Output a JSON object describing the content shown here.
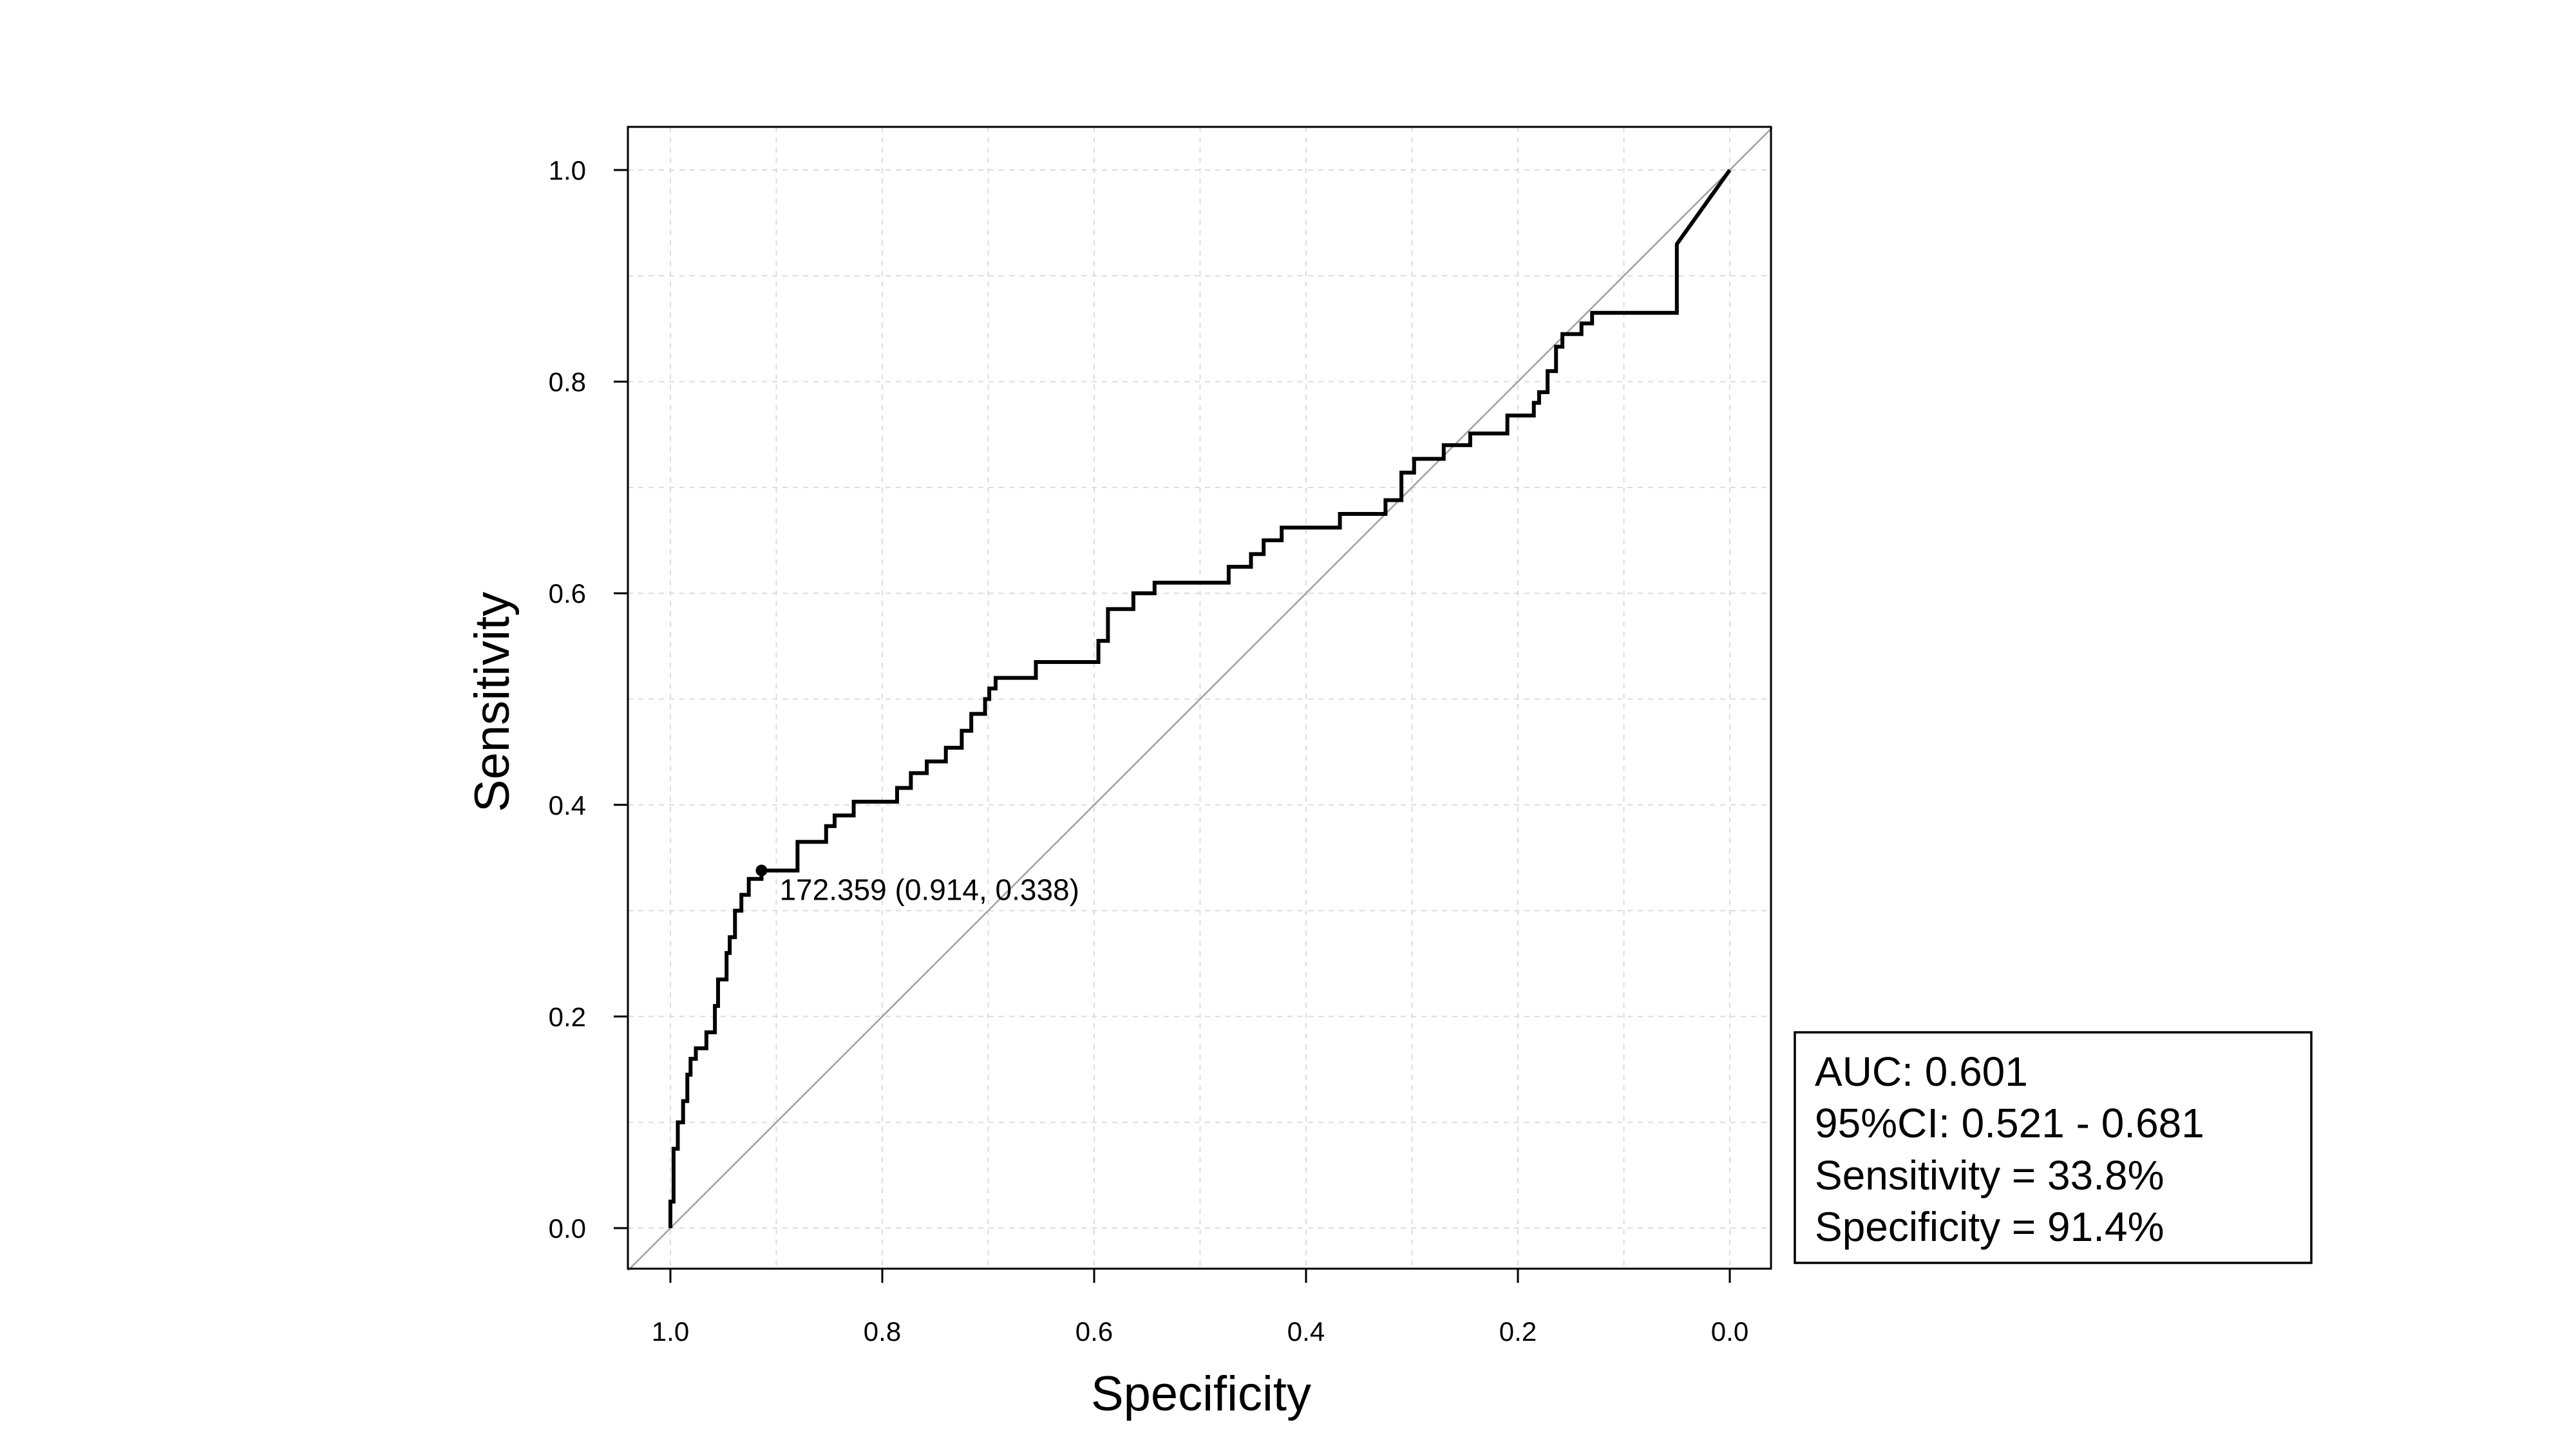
{
  "chart_data": {
    "type": "line",
    "xlabel": "Specificity",
    "ylabel": "Sensitivity",
    "xlim": [
      1.0,
      0.0
    ],
    "ylim": [
      0.0,
      1.0
    ],
    "x_reversed": true,
    "grid": true,
    "x_ticks": [
      "1.0",
      "0.8",
      "0.6",
      "0.4",
      "0.2",
      "0.0"
    ],
    "y_ticks": [
      "0.0",
      "0.2",
      "0.4",
      "0.6",
      "0.8",
      "1.0"
    ],
    "reference_line": {
      "from": [
        1.0,
        0.0
      ],
      "to": [
        0.0,
        1.0
      ]
    },
    "series": [
      {
        "specificity": [
          1.0,
          1.0,
          0.997,
          0.993,
          0.988,
          0.984,
          0.981,
          0.976,
          0.966,
          0.958,
          0.955,
          0.947,
          0.944,
          0.939,
          0.933,
          0.926,
          0.914,
          0.88,
          0.853,
          0.845,
          0.827,
          0.786,
          0.773,
          0.758,
          0.74,
          0.725,
          0.716,
          0.703,
          0.699,
          0.693,
          0.673,
          0.655,
          0.603,
          0.596,
          0.587,
          0.563,
          0.543,
          0.48,
          0.473,
          0.452,
          0.44,
          0.423,
          0.368,
          0.325,
          0.31,
          0.298,
          0.27,
          0.245,
          0.21,
          0.185,
          0.18,
          0.172,
          0.164,
          0.158,
          0.14,
          0.13,
          0.05,
          0.0
        ],
        "sensitivity": [
          0.0,
          0.025,
          0.075,
          0.1,
          0.12,
          0.145,
          0.16,
          0.17,
          0.185,
          0.21,
          0.235,
          0.26,
          0.275,
          0.3,
          0.315,
          0.33,
          0.338,
          0.365,
          0.38,
          0.39,
          0.403,
          0.416,
          0.43,
          0.441,
          0.454,
          0.47,
          0.486,
          0.5,
          0.51,
          0.52,
          0.52,
          0.535,
          0.535,
          0.555,
          0.585,
          0.6,
          0.61,
          0.61,
          0.625,
          0.637,
          0.65,
          0.662,
          0.675,
          0.688,
          0.714,
          0.727,
          0.74,
          0.751,
          0.768,
          0.78,
          0.79,
          0.81,
          0.833,
          0.845,
          0.855,
          0.865,
          0.93,
          1.0
        ]
      }
    ],
    "optimal_point": {
      "specificity": 0.914,
      "sensitivity": 0.338,
      "label": "172.359 (0.914, 0.338)"
    },
    "legend": {
      "position": "bottom-right",
      "lines": [
        "AUC: 0.601",
        "95%CI: 0.521 - 0.681",
        "Sensitivity = 33.8%",
        "Specificity = 91.4%"
      ]
    },
    "colors": {
      "curve": "#000000",
      "reference": "#a0a0a0",
      "grid": "#dcdcdc",
      "frame": "#000000"
    }
  }
}
